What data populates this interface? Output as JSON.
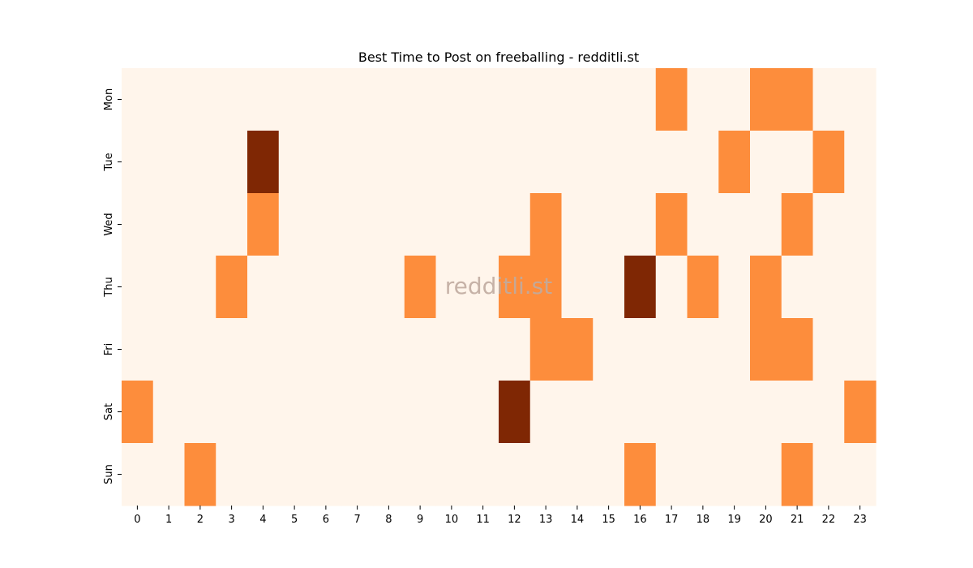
{
  "chart_data": {
    "type": "heatmap",
    "title": "Best Time to Post on freeballing - redditli.st",
    "watermark": "redditli.st",
    "x_labels": [
      "0",
      "1",
      "2",
      "3",
      "4",
      "5",
      "6",
      "7",
      "8",
      "9",
      "10",
      "11",
      "12",
      "13",
      "14",
      "15",
      "16",
      "17",
      "18",
      "19",
      "20",
      "21",
      "22",
      "23"
    ],
    "y_labels": [
      "Mon",
      "Tue",
      "Wed",
      "Thu",
      "Fri",
      "Sat",
      "Sun"
    ],
    "values": [
      [
        0,
        0,
        0,
        0,
        0,
        0,
        0,
        0,
        0,
        0,
        0,
        0,
        0,
        0,
        0,
        0,
        0,
        1,
        0,
        0,
        1,
        1,
        0,
        0
      ],
      [
        0,
        0,
        0,
        0,
        2,
        0,
        0,
        0,
        0,
        0,
        0,
        0,
        0,
        0,
        0,
        0,
        0,
        0,
        0,
        1,
        0,
        0,
        1,
        0
      ],
      [
        0,
        0,
        0,
        0,
        1,
        0,
        0,
        0,
        0,
        0,
        0,
        0,
        0,
        1,
        0,
        0,
        0,
        1,
        0,
        0,
        0,
        1,
        0,
        0
      ],
      [
        0,
        0,
        0,
        1,
        0,
        0,
        0,
        0,
        0,
        1,
        0,
        0,
        1,
        1,
        0,
        0,
        2,
        0,
        1,
        0,
        1,
        0,
        0,
        0
      ],
      [
        0,
        0,
        0,
        0,
        0,
        0,
        0,
        0,
        0,
        0,
        0,
        0,
        0,
        1,
        1,
        0,
        0,
        0,
        0,
        0,
        1,
        1,
        0,
        0
      ],
      [
        1,
        0,
        0,
        0,
        0,
        0,
        0,
        0,
        0,
        0,
        0,
        0,
        2,
        0,
        0,
        0,
        0,
        0,
        0,
        0,
        0,
        0,
        0,
        1
      ],
      [
        0,
        0,
        1,
        0,
        0,
        0,
        0,
        0,
        0,
        0,
        0,
        0,
        0,
        0,
        0,
        0,
        1,
        0,
        0,
        0,
        0,
        1,
        0,
        0
      ]
    ],
    "colorscale": [
      "#fff5eb",
      "#fd8d3c",
      "#7f2704"
    ],
    "xlabel": "",
    "ylabel": "",
    "legend": "none"
  }
}
